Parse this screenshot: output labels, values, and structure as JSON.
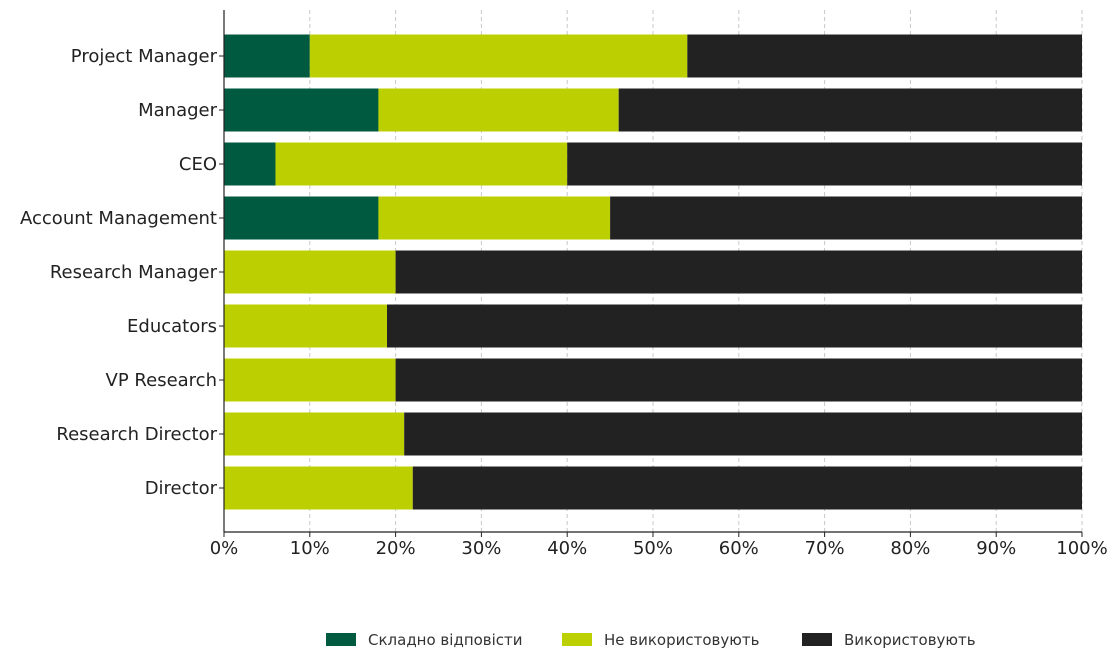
{
  "chart_data": {
    "type": "bar",
    "orientation": "horizontal",
    "stacked": true,
    "categories": [
      "Project Manager",
      "Manager",
      "CEO",
      "Account Management",
      "Research Manager",
      "Educators",
      "VP Research",
      "Research Director",
      "Director"
    ],
    "series": [
      {
        "name": "Складно відповісти",
        "color": "#005a40",
        "values": [
          10,
          18,
          6,
          18,
          0,
          0,
          0,
          0,
          0
        ]
      },
      {
        "name": "Не використовують",
        "color": "#bccf00",
        "values": [
          44,
          28,
          34,
          27,
          20,
          19,
          20,
          21,
          22
        ]
      },
      {
        "name": "Використовують",
        "color": "#222222",
        "values": [
          46,
          54,
          60,
          55,
          80,
          81,
          80,
          79,
          78
        ]
      }
    ],
    "x_ticks": [
      "0%",
      "10%",
      "20%",
      "30%",
      "40%",
      "50%",
      "60%",
      "70%",
      "80%",
      "90%",
      "100%"
    ],
    "xlim": [
      0,
      100
    ],
    "grid": true,
    "legend_position": "bottom"
  }
}
